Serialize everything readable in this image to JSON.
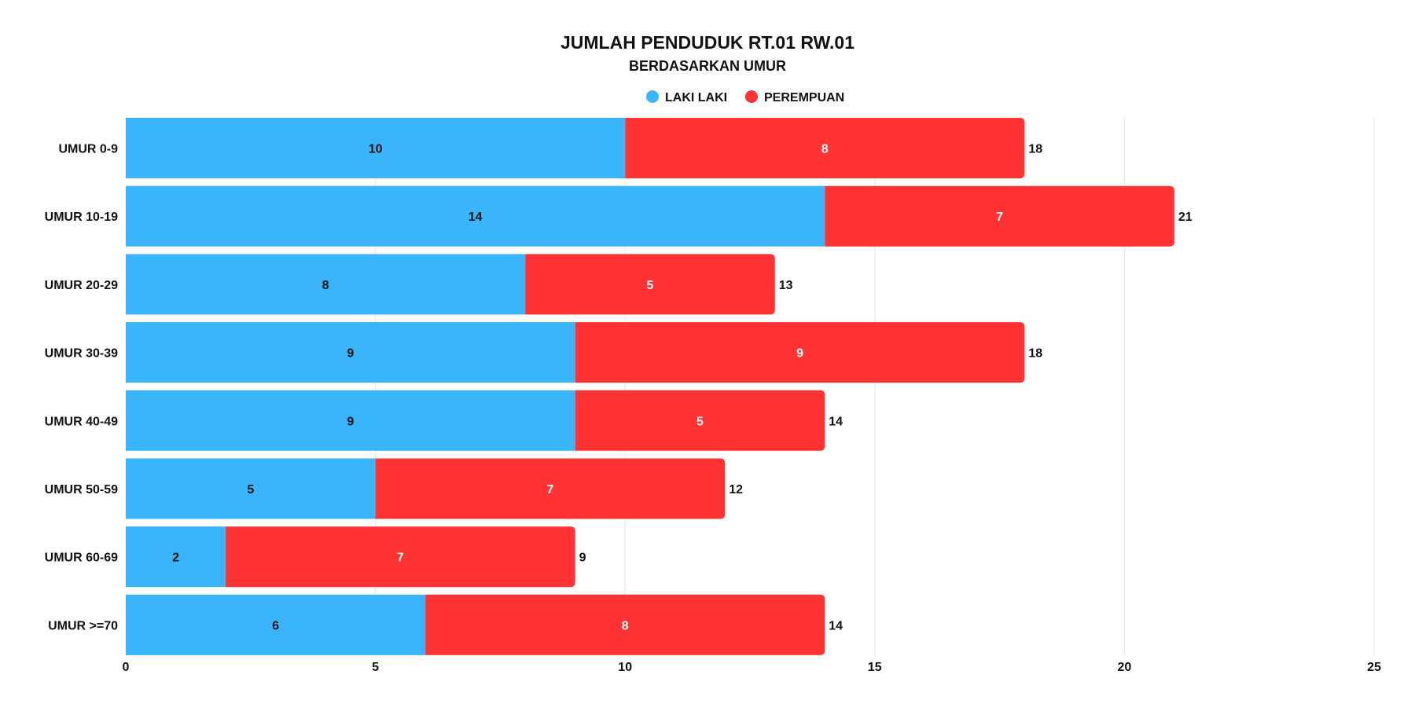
{
  "chart_data": {
    "type": "bar",
    "orientation": "horizontal",
    "stacked": true,
    "title": "JUMLAH PENDUDUK RT.01 RW.01",
    "subtitle": "BERDASARKAN UMUR",
    "categories": [
      "UMUR 0-9",
      "UMUR 10-19",
      "UMUR 20-29",
      "UMUR 30-39",
      "UMUR 40-49",
      "UMUR 50-59",
      "UMUR 60-69",
      "UMUR >=70"
    ],
    "series": [
      {
        "name": "LAKI LAKI",
        "color": "#3ab5fc",
        "label_color": "#111111",
        "values": [
          10,
          14,
          8,
          9,
          9,
          5,
          2,
          6
        ]
      },
      {
        "name": "PEREMPUAN",
        "color": "#ff3333",
        "label_color": "#ffffff",
        "values": [
          8,
          7,
          5,
          9,
          5,
          7,
          7,
          8
        ]
      }
    ],
    "totals": [
      18,
      21,
      13,
      18,
      14,
      12,
      9,
      14
    ],
    "xlim": [
      0,
      25
    ],
    "x_ticks": [
      0,
      5,
      10,
      15,
      20,
      25
    ],
    "grid": true,
    "legend_position": "top-center"
  }
}
